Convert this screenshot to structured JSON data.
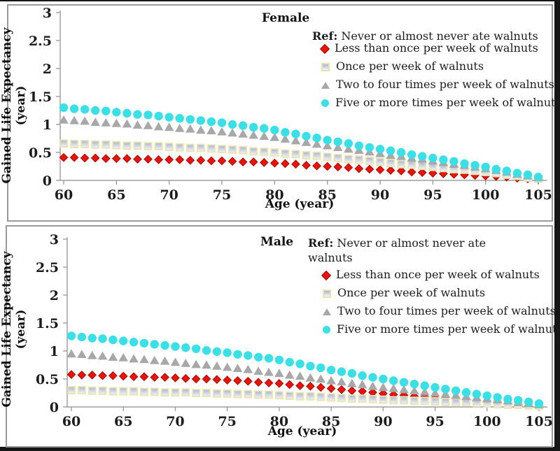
{
  "figure": {
    "background": "#ffffff",
    "edge_color": "#161616",
    "panel_border_color": "#9a9a9a"
  },
  "chart_data": [
    {
      "type": "scatter",
      "title": "Female",
      "ref_prefix": "Ref:",
      "ref_text": "Never or almost never ate walnuts",
      "xlabel": "Age (year)",
      "ylabel": "Gained Life Expectancy (year)",
      "xlim": [
        60,
        105
      ],
      "ylim": [
        0,
        3
      ],
      "x_ticks": [
        60,
        65,
        70,
        75,
        80,
        85,
        90,
        95,
        100,
        105
      ],
      "y_tick_labels": [
        "3",
        "2.5",
        "2",
        "1.5",
        "1",
        "0.5",
        "0"
      ],
      "grid": "off",
      "legend_position": "top-right-inside",
      "axis_color": "#9d9d9d",
      "tick_label_color": "#1c1c1c",
      "x": [
        60,
        61,
        62,
        63,
        64,
        65,
        66,
        67,
        68,
        69,
        70,
        71,
        72,
        73,
        74,
        75,
        76,
        77,
        78,
        79,
        80,
        81,
        82,
        83,
        84,
        85,
        86,
        87,
        88,
        89,
        90,
        91,
        92,
        93,
        94,
        95,
        96,
        97,
        98,
        99,
        100,
        101,
        102,
        103,
        104,
        105
      ],
      "series": [
        {
          "label": "Less than once per week of walnuts",
          "marker": "diamond",
          "color": "#e8140c",
          "edge": "#a50d07",
          "values": [
            0.41,
            0.41,
            0.4,
            0.4,
            0.39,
            0.39,
            0.39,
            0.38,
            0.38,
            0.37,
            0.37,
            0.37,
            0.36,
            0.36,
            0.35,
            0.35,
            0.34,
            0.33,
            0.33,
            0.32,
            0.31,
            0.3,
            0.29,
            0.27,
            0.26,
            0.25,
            0.24,
            0.23,
            0.21,
            0.2,
            0.19,
            0.18,
            0.17,
            0.15,
            0.14,
            0.13,
            0.12,
            0.11,
            0.1,
            0.09,
            0.08,
            0.07,
            0.06,
            0.04,
            0.03,
            0.02
          ]
        },
        {
          "label": "Once per week of walnuts",
          "marker": "square",
          "color": "#a9b3d6",
          "color2": "#f5f6fa",
          "edge": "#e9e3ae",
          "values": [
            0.66,
            0.65,
            0.65,
            0.64,
            0.64,
            0.63,
            0.62,
            0.62,
            0.61,
            0.61,
            0.6,
            0.59,
            0.58,
            0.58,
            0.57,
            0.56,
            0.55,
            0.54,
            0.52,
            0.51,
            0.5,
            0.48,
            0.47,
            0.45,
            0.44,
            0.42,
            0.4,
            0.38,
            0.37,
            0.35,
            0.33,
            0.31,
            0.29,
            0.28,
            0.26,
            0.24,
            0.22,
            0.2,
            0.19,
            0.17,
            0.15,
            0.13,
            0.1,
            0.08,
            0.05,
            0.03
          ]
        },
        {
          "label": "Two to four times per week of walnuts",
          "marker": "triangle",
          "color": "#a8a8a8",
          "values": [
            1.08,
            1.07,
            1.06,
            1.04,
            1.03,
            1.02,
            1.01,
            0.99,
            0.98,
            0.96,
            0.95,
            0.93,
            0.92,
            0.9,
            0.89,
            0.87,
            0.85,
            0.83,
            0.81,
            0.79,
            0.77,
            0.74,
            0.71,
            0.68,
            0.65,
            0.62,
            0.59,
            0.56,
            0.54,
            0.51,
            0.48,
            0.45,
            0.43,
            0.4,
            0.38,
            0.35,
            0.32,
            0.29,
            0.27,
            0.24,
            0.21,
            0.18,
            0.15,
            0.11,
            0.08,
            0.05
          ]
        },
        {
          "label": "Five or more times per week of walnuts",
          "marker": "circle",
          "color": "#3be0e6",
          "values": [
            1.3,
            1.28,
            1.27,
            1.25,
            1.24,
            1.22,
            1.2,
            1.18,
            1.17,
            1.15,
            1.13,
            1.11,
            1.09,
            1.07,
            1.05,
            1.03,
            1.0,
            0.98,
            0.95,
            0.93,
            0.9,
            0.86,
            0.83,
            0.79,
            0.76,
            0.72,
            0.69,
            0.66,
            0.62,
            0.59,
            0.56,
            0.53,
            0.5,
            0.46,
            0.43,
            0.4,
            0.37,
            0.34,
            0.3,
            0.27,
            0.24,
            0.2,
            0.17,
            0.13,
            0.1,
            0.06
          ]
        }
      ]
    },
    {
      "type": "scatter",
      "title": "Male",
      "ref_prefix": "Ref:",
      "ref_text": "Never or almost never ate walnuts",
      "xlabel": "Age (year)",
      "ylabel": "Gained Life Expectancy (year)",
      "xlim": [
        60,
        105
      ],
      "ylim": [
        0,
        3
      ],
      "x_ticks": [
        60,
        65,
        70,
        75,
        80,
        85,
        90,
        95,
        100,
        105
      ],
      "y_tick_labels": [
        "3",
        "2.5",
        "2",
        "1.5",
        "1",
        "0.5",
        "0"
      ],
      "grid": "off",
      "legend_position": "top-right-inside",
      "axis_color": "#9d9d9d",
      "tick_label_color": "#1c1c1c",
      "x": [
        60,
        61,
        62,
        63,
        64,
        65,
        66,
        67,
        68,
        69,
        70,
        71,
        72,
        73,
        74,
        75,
        76,
        77,
        78,
        79,
        80,
        81,
        82,
        83,
        84,
        85,
        86,
        87,
        88,
        89,
        90,
        91,
        92,
        93,
        94,
        95,
        96,
        97,
        98,
        99,
        100,
        101,
        102,
        103,
        104,
        105
      ],
      "series": [
        {
          "label": "Less than once per week of walnuts",
          "marker": "diamond",
          "color": "#e8140c",
          "edge": "#a50d07",
          "values": [
            0.58,
            0.57,
            0.57,
            0.56,
            0.56,
            0.55,
            0.54,
            0.54,
            0.53,
            0.53,
            0.52,
            0.51,
            0.5,
            0.5,
            0.49,
            0.48,
            0.47,
            0.46,
            0.44,
            0.43,
            0.42,
            0.4,
            0.38,
            0.37,
            0.35,
            0.33,
            0.31,
            0.29,
            0.28,
            0.26,
            0.24,
            0.22,
            0.21,
            0.19,
            0.18,
            0.16,
            0.15,
            0.13,
            0.12,
            0.1,
            0.09,
            0.08,
            0.06,
            0.05,
            0.03,
            0.02
          ]
        },
        {
          "label": "Once per week of walnuts",
          "marker": "square",
          "color": "#a9b3d6",
          "color2": "#f5f6fa",
          "edge": "#e9e3ae",
          "values": [
            0.3,
            0.3,
            0.29,
            0.29,
            0.28,
            0.28,
            0.28,
            0.27,
            0.27,
            0.26,
            0.26,
            0.26,
            0.25,
            0.25,
            0.24,
            0.24,
            0.23,
            0.23,
            0.22,
            0.22,
            0.21,
            0.2,
            0.19,
            0.19,
            0.18,
            0.17,
            0.16,
            0.15,
            0.15,
            0.14,
            0.13,
            0.12,
            0.12,
            0.11,
            0.11,
            0.1,
            0.09,
            0.08,
            0.08,
            0.07,
            0.06,
            0.05,
            0.04,
            0.04,
            0.03,
            0.02
          ]
        },
        {
          "label": "Two to four times per week of walnuts",
          "marker": "triangle",
          "color": "#a8a8a8",
          "values": [
            0.95,
            0.94,
            0.92,
            0.91,
            0.89,
            0.88,
            0.86,
            0.85,
            0.83,
            0.82,
            0.8,
            0.78,
            0.76,
            0.75,
            0.73,
            0.71,
            0.69,
            0.67,
            0.64,
            0.62,
            0.6,
            0.57,
            0.55,
            0.52,
            0.5,
            0.47,
            0.45,
            0.42,
            0.4,
            0.37,
            0.35,
            0.33,
            0.31,
            0.29,
            0.27,
            0.25,
            0.23,
            0.21,
            0.19,
            0.17,
            0.15,
            0.13,
            0.11,
            0.08,
            0.06,
            0.04
          ]
        },
        {
          "label": "Five or more times per week of walnuts",
          "marker": "circle",
          "color": "#3be0e6",
          "values": [
            1.27,
            1.25,
            1.23,
            1.22,
            1.2,
            1.18,
            1.16,
            1.14,
            1.12,
            1.1,
            1.08,
            1.06,
            1.04,
            1.01,
            0.99,
            0.97,
            0.94,
            0.92,
            0.89,
            0.87,
            0.84,
            0.8,
            0.77,
            0.73,
            0.7,
            0.66,
            0.63,
            0.6,
            0.56,
            0.53,
            0.5,
            0.47,
            0.44,
            0.41,
            0.38,
            0.35,
            0.32,
            0.29,
            0.26,
            0.23,
            0.2,
            0.17,
            0.14,
            0.12,
            0.09,
            0.06
          ]
        }
      ]
    }
  ]
}
